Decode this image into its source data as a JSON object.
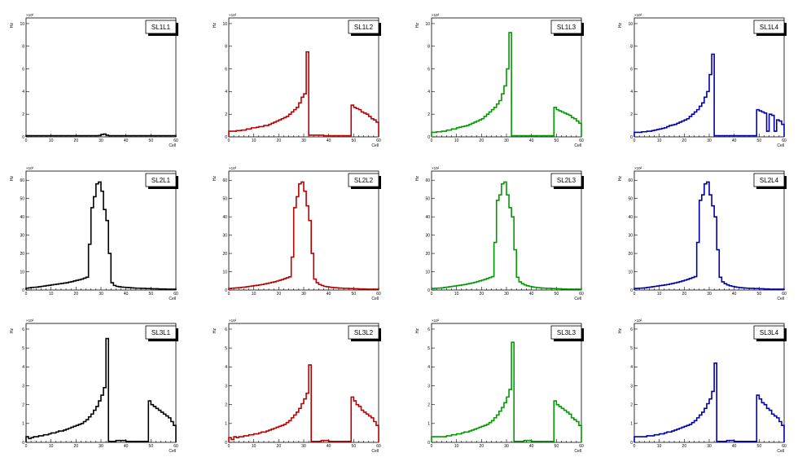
{
  "chart_data": [
    {
      "type": "histogram",
      "title": "SL1L1",
      "xlabel": "Cell",
      "ylabel": "Hz",
      "multiplier": "×10²",
      "xlim": [
        0,
        60
      ],
      "ylim": [
        0,
        10.5
      ],
      "yticks": [
        0,
        2,
        4,
        6,
        8,
        10
      ],
      "xticks": [
        0,
        10,
        20,
        30,
        40,
        50,
        60
      ],
      "color": "#000000",
      "values": [
        0.1,
        0.1,
        0.1,
        0.1,
        0.1,
        0.1,
        0.1,
        0.1,
        0.1,
        0.1,
        0.1,
        0.1,
        0.1,
        0.1,
        0.1,
        0.1,
        0.1,
        0.1,
        0.1,
        0.1,
        0.1,
        0.1,
        0.1,
        0.1,
        0.1,
        0.1,
        0.1,
        0.1,
        0.1,
        0.12,
        0.2,
        0.25,
        0.15,
        0.1,
        0.1,
        0.1,
        0.1,
        0.1,
        0.1,
        0.1,
        0.1,
        0.1,
        0.1,
        0.1,
        0.1,
        0.1,
        0.1,
        0.1,
        0.1,
        0.1,
        0.1,
        0.1,
        0.1,
        0.1,
        0.1,
        0.1,
        0.1,
        0.1,
        0.1,
        0.1
      ]
    },
    {
      "type": "histogram",
      "title": "SL1L2",
      "xlabel": "Cell",
      "ylabel": "Hz",
      "multiplier": "×10²",
      "xlim": [
        0,
        60
      ],
      "ylim": [
        0,
        10.5
      ],
      "yticks": [
        0,
        2,
        4,
        6,
        8,
        10
      ],
      "xticks": [
        0,
        10,
        20,
        30,
        40,
        50,
        60
      ],
      "color": "#bb0000",
      "values": [
        0.5,
        0.5,
        0.5,
        0.55,
        0.55,
        0.6,
        0.6,
        0.7,
        0.7,
        0.8,
        0.8,
        0.85,
        0.9,
        0.9,
        1.0,
        1.0,
        1.1,
        1.2,
        1.3,
        1.4,
        1.5,
        1.6,
        1.7,
        1.8,
        2.0,
        2.2,
        2.4,
        2.6,
        3.0,
        3.5,
        3.8,
        7.5,
        0.15,
        0.15,
        0.15,
        0.15,
        0.15,
        0.15,
        0.1,
        0.1,
        0.1,
        0.1,
        0.1,
        0.1,
        0.1,
        0.1,
        0.1,
        0.1,
        0.1,
        2.8,
        2.6,
        2.5,
        2.4,
        2.2,
        2.1,
        2.0,
        1.8,
        1.6,
        1.5,
        1.3
      ]
    },
    {
      "type": "histogram",
      "title": "SL1L3",
      "xlabel": "Cell",
      "ylabel": "Hz",
      "multiplier": "×10²",
      "xlim": [
        0,
        60
      ],
      "ylim": [
        0,
        10.5
      ],
      "yticks": [
        0,
        2,
        4,
        6,
        8,
        10
      ],
      "xticks": [
        0,
        10,
        20,
        30,
        40,
        50,
        60
      ],
      "color": "#009900",
      "values": [
        0.4,
        0.4,
        0.45,
        0.45,
        0.5,
        0.5,
        0.6,
        0.6,
        0.7,
        0.7,
        0.8,
        0.85,
        0.9,
        0.95,
        1.0,
        1.1,
        1.2,
        1.3,
        1.4,
        1.5,
        1.6,
        1.8,
        2.0,
        2.2,
        2.4,
        2.6,
        2.9,
        3.2,
        3.8,
        4.5,
        6.0,
        9.2,
        0.1,
        0.1,
        0.1,
        0.1,
        0.1,
        0.1,
        0.1,
        0.1,
        0.1,
        0.1,
        0.1,
        0.1,
        0.1,
        0.1,
        0.1,
        0.1,
        0.1,
        2.6,
        2.4,
        2.3,
        2.2,
        2.1,
        2.0,
        1.9,
        1.7,
        1.6,
        1.4,
        1.2
      ]
    },
    {
      "type": "histogram",
      "title": "SL1L4",
      "xlabel": "Cell",
      "ylabel": "Hz",
      "multiplier": "×10²",
      "xlim": [
        0,
        60
      ],
      "ylim": [
        0,
        10.5
      ],
      "yticks": [
        0,
        2,
        4,
        6,
        8,
        10
      ],
      "xticks": [
        0,
        10,
        20,
        30,
        40,
        50,
        60
      ],
      "color": "#0000aa",
      "values": [
        0.4,
        0.4,
        0.4,
        0.45,
        0.45,
        0.5,
        0.5,
        0.55,
        0.6,
        0.65,
        0.7,
        0.75,
        0.8,
        0.9,
        1.0,
        1.05,
        1.1,
        1.2,
        1.3,
        1.4,
        1.5,
        1.6,
        1.8,
        2.0,
        2.2,
        2.4,
        2.7,
        3.0,
        3.5,
        4.0,
        5.5,
        7.3,
        0.1,
        0.1,
        0.1,
        0.1,
        0.1,
        0.1,
        0.1,
        0.1,
        0.1,
        0.1,
        0.1,
        0.1,
        0.1,
        0.1,
        0.1,
        0.1,
        0.1,
        2.4,
        2.3,
        2.2,
        2.1,
        0.5,
        2.0,
        1.9,
        0.5,
        1.5,
        1.4,
        1.1
      ]
    },
    {
      "type": "histogram",
      "title": "SL2L1",
      "xlabel": "Cell",
      "ylabel": "Hz",
      "multiplier": "×10²",
      "xlim": [
        0,
        60
      ],
      "ylim": [
        0,
        65
      ],
      "yticks": [
        0,
        10,
        20,
        30,
        40,
        50,
        60
      ],
      "xticks": [
        0,
        10,
        20,
        30,
        40,
        50,
        60
      ],
      "color": "#000000",
      "values": [
        1.0,
        1.2,
        1.4,
        1.5,
        1.6,
        1.8,
        2.0,
        2.2,
        2.4,
        2.6,
        2.8,
        3.0,
        3.2,
        3.4,
        3.6,
        3.8,
        4.0,
        4.3,
        4.6,
        5.0,
        5.3,
        5.6,
        6.0,
        6.5,
        7.0,
        25,
        45,
        51,
        58,
        59,
        54,
        44,
        38,
        20,
        4,
        2.5,
        2.0,
        1.8,
        1.6,
        1.5,
        1.4,
        1.3,
        1.2,
        1.1,
        1.0,
        1.0,
        0.9,
        0.9,
        0.8,
        0.8,
        0.7,
        0.7,
        0.7,
        0.6,
        0.6,
        0.6,
        0.5,
        0.5,
        0.5,
        0.5
      ]
    },
    {
      "type": "histogram",
      "title": "SL2L2",
      "xlabel": "Cell",
      "ylabel": "Hz",
      "multiplier": "×10²",
      "xlim": [
        0,
        60
      ],
      "ylim": [
        0,
        65
      ],
      "yticks": [
        0,
        10,
        20,
        30,
        40,
        50,
        60
      ],
      "xticks": [
        0,
        10,
        20,
        30,
        40,
        50,
        60
      ],
      "color": "#bb0000",
      "values": [
        0.8,
        1.0,
        1.1,
        1.2,
        1.3,
        1.5,
        1.6,
        1.8,
        2.0,
        2.2,
        2.4,
        2.6,
        2.8,
        3.0,
        3.3,
        3.6,
        3.9,
        4.2,
        4.5,
        4.9,
        5.3,
        5.7,
        6.2,
        6.7,
        7.2,
        18,
        45,
        51,
        58,
        59,
        54,
        46,
        38,
        20,
        6,
        4.0,
        3.0,
        2.5,
        2.0,
        1.8,
        1.6,
        1.4,
        1.3,
        1.2,
        1.1,
        1.0,
        0.9,
        0.9,
        0.8,
        0.8,
        0.7,
        0.7,
        0.6,
        0.6,
        0.6,
        0.5,
        0.5,
        0.5,
        0.5,
        0.5
      ]
    },
    {
      "type": "histogram",
      "title": "SL2L3",
      "xlabel": "Cell",
      "ylabel": "Hz",
      "multiplier": "×10²",
      "xlim": [
        0,
        60
      ],
      "ylim": [
        0,
        65
      ],
      "yticks": [
        0,
        10,
        20,
        30,
        40,
        50,
        60
      ],
      "xticks": [
        0,
        10,
        20,
        30,
        40,
        50,
        60
      ],
      "color": "#009900",
      "values": [
        0.8,
        0.9,
        1.0,
        1.1,
        1.2,
        1.4,
        1.6,
        1.8,
        2.0,
        2.2,
        2.4,
        2.6,
        2.8,
        3.0,
        3.3,
        3.6,
        3.9,
        4.2,
        4.6,
        5.0,
        5.4,
        5.8,
        6.3,
        6.8,
        7.3,
        26,
        49,
        52,
        58,
        59,
        52,
        45,
        40,
        22,
        7,
        4.5,
        3.5,
        2.8,
        2.3,
        2.0,
        1.7,
        1.5,
        1.3,
        1.2,
        1.1,
        1.0,
        0.9,
        0.9,
        0.8,
        0.8,
        0.7,
        0.7,
        0.6,
        0.6,
        0.5,
        0.5,
        0.5,
        0.5,
        0.5,
        0.5
      ]
    },
    {
      "type": "histogram",
      "title": "SL2L4",
      "xlabel": "Cell",
      "ylabel": "Hz",
      "multiplier": "×10²",
      "xlim": [
        0,
        60
      ],
      "ylim": [
        0,
        65
      ],
      "yticks": [
        0,
        10,
        20,
        30,
        40,
        50,
        60
      ],
      "xticks": [
        0,
        10,
        20,
        30,
        40,
        50,
        60
      ],
      "color": "#0000aa",
      "values": [
        0.8,
        0.9,
        1.0,
        1.1,
        1.2,
        1.4,
        1.6,
        1.8,
        2.0,
        2.2,
        2.4,
        2.6,
        2.8,
        3.0,
        3.3,
        3.6,
        3.9,
        4.2,
        4.6,
        5.0,
        5.4,
        5.8,
        6.3,
        6.8,
        7.3,
        26,
        49,
        52,
        58,
        59,
        52,
        46,
        40,
        22,
        7,
        4.5,
        3.5,
        2.8,
        2.3,
        2.0,
        1.7,
        1.5,
        1.3,
        1.2,
        1.1,
        1.0,
        0.9,
        0.9,
        0.8,
        0.8,
        0.7,
        0.7,
        0.6,
        0.6,
        0.5,
        0.5,
        0.5,
        0.5,
        0.5,
        0.5
      ]
    },
    {
      "type": "histogram",
      "title": "SL3L1",
      "xlabel": "Cell",
      "ylabel": "Hz",
      "multiplier": "×10²",
      "xlim": [
        0,
        60
      ],
      "ylim": [
        0,
        6.3
      ],
      "yticks": [
        0,
        1,
        2,
        3,
        4,
        5,
        6
      ],
      "xticks": [
        0,
        10,
        20,
        30,
        40,
        50,
        60
      ],
      "color": "#000000",
      "values": [
        0.3,
        0.2,
        0.25,
        0.3,
        0.3,
        0.35,
        0.35,
        0.4,
        0.4,
        0.45,
        0.5,
        0.5,
        0.55,
        0.6,
        0.6,
        0.65,
        0.7,
        0.75,
        0.8,
        0.85,
        0.9,
        0.95,
        1.0,
        1.1,
        1.2,
        1.35,
        1.5,
        1.7,
        1.9,
        2.2,
        2.5,
        2.9,
        5.5,
        0.05,
        0.05,
        0.05,
        0.1,
        0.1,
        0.1,
        0.1,
        0.05,
        0.05,
        0.05,
        0.05,
        0.05,
        0.05,
        0.05,
        0.05,
        0.05,
        2.2,
        2.0,
        1.9,
        1.8,
        1.7,
        1.6,
        1.5,
        1.4,
        1.3,
        1.1,
        0.9
      ]
    },
    {
      "type": "histogram",
      "title": "SL3L2",
      "xlabel": "Cell",
      "ylabel": "Hz",
      "multiplier": "×10²",
      "xlim": [
        0,
        60
      ],
      "ylim": [
        0,
        6.3
      ],
      "yticks": [
        0,
        1,
        2,
        3,
        4,
        5,
        6
      ],
      "xticks": [
        0,
        10,
        20,
        30,
        40,
        50,
        60
      ],
      "color": "#bb0000",
      "values": [
        0.25,
        0.15,
        0.3,
        0.25,
        0.3,
        0.3,
        0.35,
        0.35,
        0.4,
        0.4,
        0.45,
        0.45,
        0.5,
        0.55,
        0.55,
        0.6,
        0.65,
        0.7,
        0.75,
        0.8,
        0.85,
        0.9,
        0.95,
        1.05,
        1.15,
        1.3,
        1.45,
        1.6,
        1.8,
        2.05,
        2.3,
        2.6,
        4.1,
        0.05,
        0.05,
        0.05,
        0.05,
        0.1,
        0.1,
        0.1,
        0.05,
        0.05,
        0.05,
        0.05,
        0.05,
        0.05,
        0.05,
        0.05,
        0.05,
        2.4,
        2.2,
        2.0,
        1.9,
        1.7,
        1.6,
        1.5,
        1.4,
        1.3,
        1.1,
        0.9
      ]
    },
    {
      "type": "histogram",
      "title": "SL3L3",
      "xlabel": "Cell",
      "ylabel": "Hz",
      "multiplier": "×10²",
      "xlim": [
        0,
        60
      ],
      "ylim": [
        0,
        6.3
      ],
      "yticks": [
        0,
        1,
        2,
        3,
        4,
        5,
        6
      ],
      "xticks": [
        0,
        10,
        20,
        30,
        40,
        50,
        60
      ],
      "color": "#009900",
      "values": [
        0.3,
        0.3,
        0.3,
        0.3,
        0.3,
        0.3,
        0.35,
        0.35,
        0.4,
        0.4,
        0.45,
        0.45,
        0.5,
        0.55,
        0.55,
        0.6,
        0.65,
        0.7,
        0.75,
        0.8,
        0.85,
        0.9,
        0.95,
        1.05,
        1.15,
        1.3,
        1.45,
        1.65,
        1.85,
        2.1,
        2.4,
        2.8,
        5.3,
        0.05,
        0.05,
        0.05,
        0.05,
        0.1,
        0.1,
        0.1,
        0.05,
        0.05,
        0.05,
        0.05,
        0.05,
        0.05,
        0.05,
        0.05,
        0.05,
        2.2,
        2.0,
        1.9,
        1.8,
        1.7,
        1.6,
        1.5,
        1.3,
        1.2,
        1.1,
        0.9
      ]
    },
    {
      "type": "histogram",
      "title": "SL3L4",
      "xlabel": "Cell",
      "ylabel": "Hz",
      "multiplier": "×10²",
      "xlim": [
        0,
        60
      ],
      "ylim": [
        0,
        6.3
      ],
      "yticks": [
        0,
        1,
        2,
        3,
        4,
        5,
        6
      ],
      "xticks": [
        0,
        10,
        20,
        30,
        40,
        50,
        60
      ],
      "color": "#0000aa",
      "values": [
        0.3,
        0.3,
        0.3,
        0.3,
        0.3,
        0.35,
        0.35,
        0.35,
        0.4,
        0.4,
        0.45,
        0.45,
        0.5,
        0.55,
        0.55,
        0.6,
        0.65,
        0.7,
        0.75,
        0.8,
        0.85,
        0.9,
        0.95,
        1.05,
        1.15,
        1.3,
        1.45,
        1.6,
        1.8,
        2.05,
        2.3,
        2.7,
        4.2,
        0.05,
        0.05,
        0.05,
        0.05,
        0.1,
        0.1,
        0.1,
        0.05,
        0.05,
        0.05,
        0.05,
        0.05,
        0.05,
        0.05,
        0.05,
        0.05,
        2.5,
        2.3,
        2.1,
        2.0,
        1.8,
        1.7,
        1.5,
        1.4,
        1.3,
        1.1,
        0.9
      ]
    }
  ]
}
